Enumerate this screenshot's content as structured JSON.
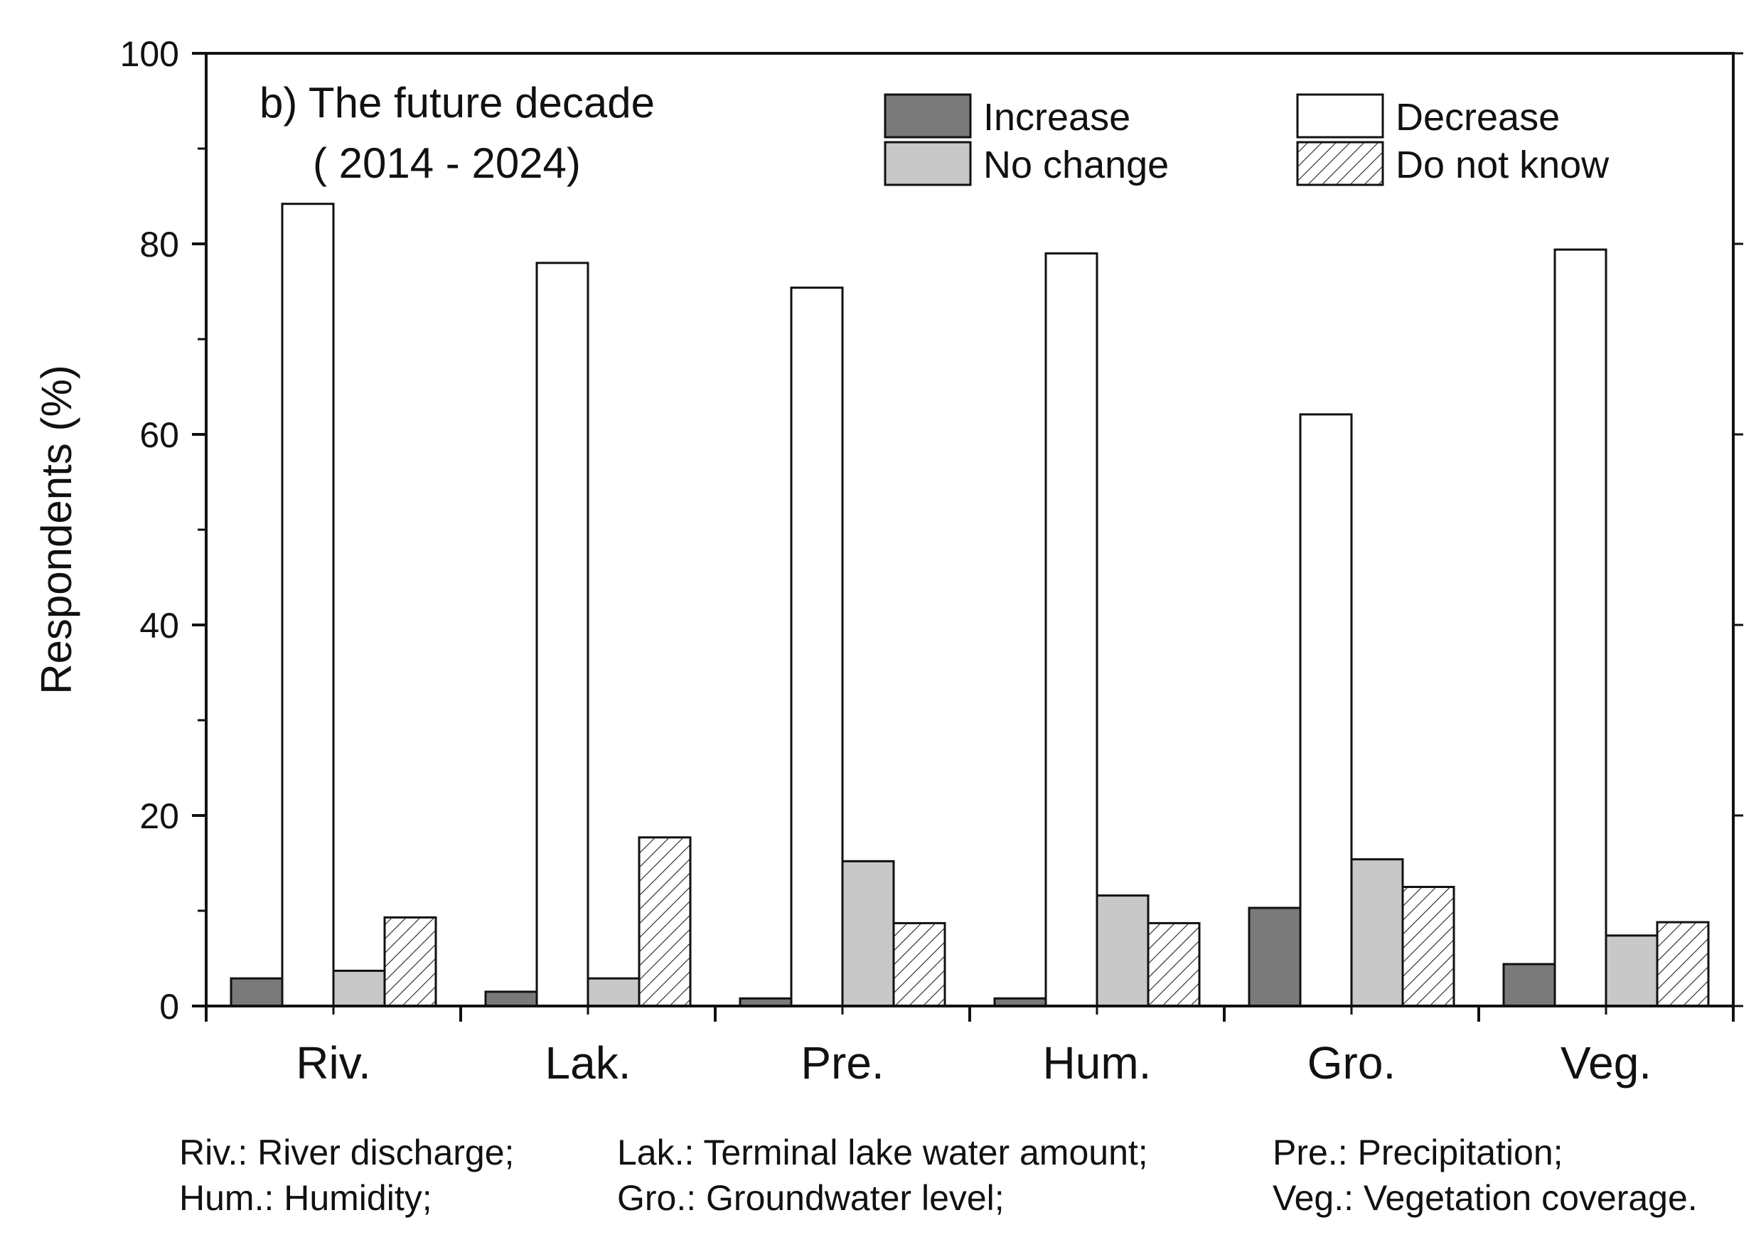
{
  "chart_data": {
    "type": "bar",
    "title": "b) The future decade",
    "subtitle": "( 2014 - 2024)",
    "xlabel": "",
    "ylabel": "Respondents (%)",
    "ylim": [
      0,
      100
    ],
    "yticks": [
      "0",
      "20",
      "40",
      "60",
      "80",
      "100"
    ],
    "categories": [
      "Riv.",
      "Lak.",
      "Pre.",
      "Hum.",
      "Gro.",
      "Veg."
    ],
    "series": [
      {
        "name": "Increase",
        "style": "dark",
        "color": "#7a7a7a",
        "values": [
          2.9,
          1.5,
          0.8,
          0.8,
          10.3,
          4.4
        ]
      },
      {
        "name": "Decrease",
        "style": "white",
        "color": "#ffffff",
        "values": [
          84.2,
          78.0,
          75.4,
          79.0,
          62.1,
          79.4
        ]
      },
      {
        "name": "No change",
        "style": "light",
        "color": "#c8c8c8",
        "values": [
          3.7,
          2.9,
          15.2,
          11.6,
          15.4,
          7.4
        ]
      },
      {
        "name": "Do not know",
        "style": "hatch",
        "color": "#ffffff",
        "values": [
          9.3,
          17.7,
          8.7,
          8.7,
          12.5,
          8.8
        ]
      }
    ],
    "legend_position": "top-right",
    "grid": false
  },
  "footnote": {
    "rows": [
      [
        "Riv.: River discharge;",
        "Lak.: Terminal lake water amount;",
        "Pre.: Precipitation;"
      ],
      [
        "Hum.: Humidity;",
        "Gro.: Groundwater level;",
        "Veg.: Vegetation coverage."
      ]
    ]
  }
}
